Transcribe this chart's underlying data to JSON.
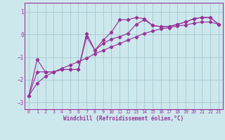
{
  "xlabel": "Windchill (Refroidissement éolien,°C)",
  "bg_color": "#cde8ed",
  "grid_color": "#a8cdd4",
  "line_color": "#993399",
  "xlim": [
    -0.5,
    23.5
  ],
  "ylim": [
    -3.3,
    1.4
  ],
  "yticks": [
    -3,
    -2,
    -1,
    0,
    1
  ],
  "xticks": [
    0,
    1,
    2,
    3,
    4,
    5,
    6,
    7,
    8,
    9,
    10,
    11,
    12,
    13,
    14,
    15,
    16,
    17,
    18,
    19,
    20,
    21,
    22,
    23
  ],
  "line_straight_x": [
    0,
    1,
    2,
    3,
    4,
    5,
    6,
    7,
    8,
    9,
    10,
    11,
    12,
    13,
    14,
    15,
    16,
    17,
    18,
    19,
    20,
    21,
    22,
    23
  ],
  "line_straight_y": [
    -2.7,
    -2.15,
    -1.85,
    -1.65,
    -1.5,
    -1.35,
    -1.2,
    -1.05,
    -0.85,
    -0.7,
    -0.55,
    -0.4,
    -0.25,
    -0.1,
    0.05,
    0.15,
    0.25,
    0.3,
    0.38,
    0.42,
    0.5,
    0.55,
    0.55,
    0.45
  ],
  "line_jagged_x": [
    0,
    1,
    2,
    3,
    4,
    5,
    6,
    7,
    8,
    9,
    10,
    11,
    12,
    13,
    14,
    15,
    16,
    17,
    18,
    19,
    20,
    21,
    22,
    23
  ],
  "line_jagged_y": [
    -2.7,
    -1.65,
    -1.65,
    -1.65,
    -1.55,
    -1.55,
    -1.55,
    0.05,
    -0.7,
    -0.25,
    0.1,
    0.65,
    0.65,
    0.75,
    0.7,
    0.4,
    0.35,
    0.35,
    0.45,
    0.55,
    0.7,
    0.75,
    0.75,
    0.45
  ],
  "line_mid_x": [
    0,
    1,
    2,
    3,
    4,
    5,
    6,
    7,
    8,
    9,
    10,
    11,
    12,
    13,
    14,
    15,
    16,
    17,
    18,
    19,
    20,
    21,
    22,
    23
  ],
  "line_mid_y": [
    -2.7,
    -1.1,
    -1.65,
    -1.65,
    -1.55,
    -1.55,
    -1.55,
    -0.1,
    -0.7,
    -0.4,
    -0.2,
    -0.1,
    0.05,
    0.45,
    0.65,
    0.4,
    0.35,
    0.35,
    0.45,
    0.55,
    0.7,
    0.75,
    0.75,
    0.45
  ]
}
